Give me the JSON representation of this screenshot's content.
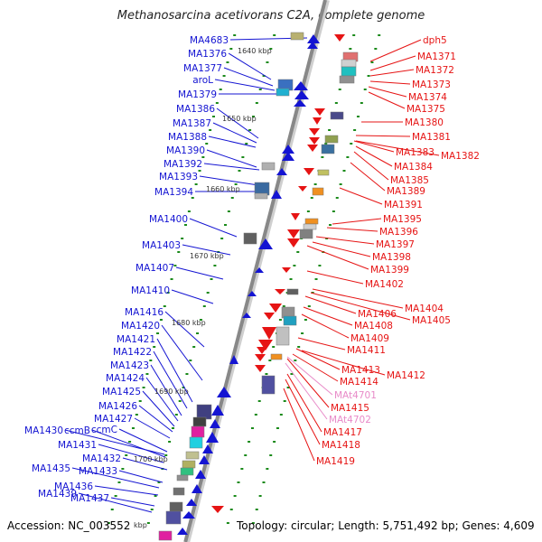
{
  "title": "Methanosarcina acetivorans C2A, complete genome",
  "footer": {
    "accession": "Accession: NC_003552",
    "stats": "Topology: circular; Length: 5,751,492 bp; Genes: 4,609"
  },
  "colors": {
    "forward": "#1414d2",
    "reverse": "#e61414",
    "rna": "#e88ac8",
    "backbone": "#888888",
    "tick_dots": "#1a8a1a"
  },
  "kbp_ticks": [
    "1640 kbp",
    "1650 kbp",
    "1660 kbp",
    "1670 kbp",
    "1680 kbp",
    "1690 kbp",
    "1700 kbp",
    "kbp"
  ],
  "left_labels": [
    "MA4683",
    "MA1376",
    "MA1377",
    "aroL",
    "MA1379",
    "MA1386",
    "MA1387",
    "MA1388",
    "MA1390",
    "MA1392",
    "MA1393",
    "MA1394",
    "MA1400",
    "MA1403",
    "MA1407",
    "MA1410",
    "MA1416",
    "MA1420",
    "MA1421",
    "MA1422",
    "MA1423",
    "MA1424",
    "MA1425",
    "MA1426",
    "MA1427",
    "MA1430",
    "ccmB",
    "ccmC",
    "MA1431",
    "MA1432",
    "MA1433",
    "MA1435",
    "MA1436",
    "MA1437",
    "MA1439"
  ],
  "right_labels": [
    "dph5",
    "MA1371",
    "MA1372",
    "MA1373",
    "MA1374",
    "MA1375",
    "MA1380",
    "MA1381",
    "MA1383",
    "MA1382",
    "MA1384",
    "MA1385",
    "MA1389",
    "MA1391",
    "MA1395",
    "MA1396",
    "MA1397",
    "MA1398",
    "MA1399",
    "MA1402",
    "MA1404",
    "MA1406",
    "MA1405",
    "MA1408",
    "MA1409",
    "MA1411",
    "MA1413",
    "MA1412",
    "MA1414",
    "MAt4701",
    "MAt4702",
    "MA1415",
    "MA1417",
    "MA1418",
    "MA1419"
  ]
}
